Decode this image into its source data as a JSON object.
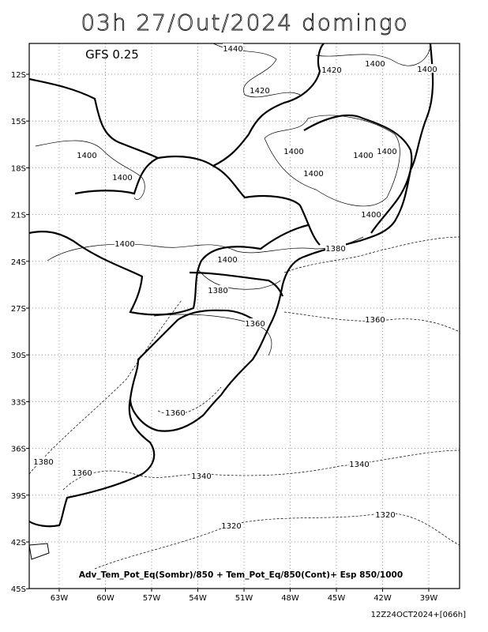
{
  "title": "03h 27/Out/2024 domingo",
  "model": "GFS 0.25",
  "lat_labels": [
    "12S",
    "15S",
    "18S",
    "21S",
    "24S",
    "27S",
    "30S",
    "33S",
    "36S",
    "39S",
    "42S",
    "45S"
  ],
  "lon_labels": [
    "63W",
    "60W",
    "57W",
    "54W",
    "51W",
    "48W",
    "45W",
    "42W",
    "39W"
  ],
  "contour_labels": [
    "1440",
    "1400",
    "1400",
    "1420",
    "1420",
    "1400",
    "1400",
    "1400",
    "1400",
    "1400",
    "1400",
    "1400",
    "1400",
    "1400",
    "1380",
    "1380",
    "1360",
    "1360",
    "1360",
    "1380",
    "1360",
    "1340",
    "1340",
    "1320",
    "1320"
  ],
  "caption": "Adv_Tem_Pot_Eq(Sombr)/850 + Tem_Pot_Eq/850(Cont)+ Esp 850/1000",
  "footer": "12Z24OCT2024+[066h]"
}
